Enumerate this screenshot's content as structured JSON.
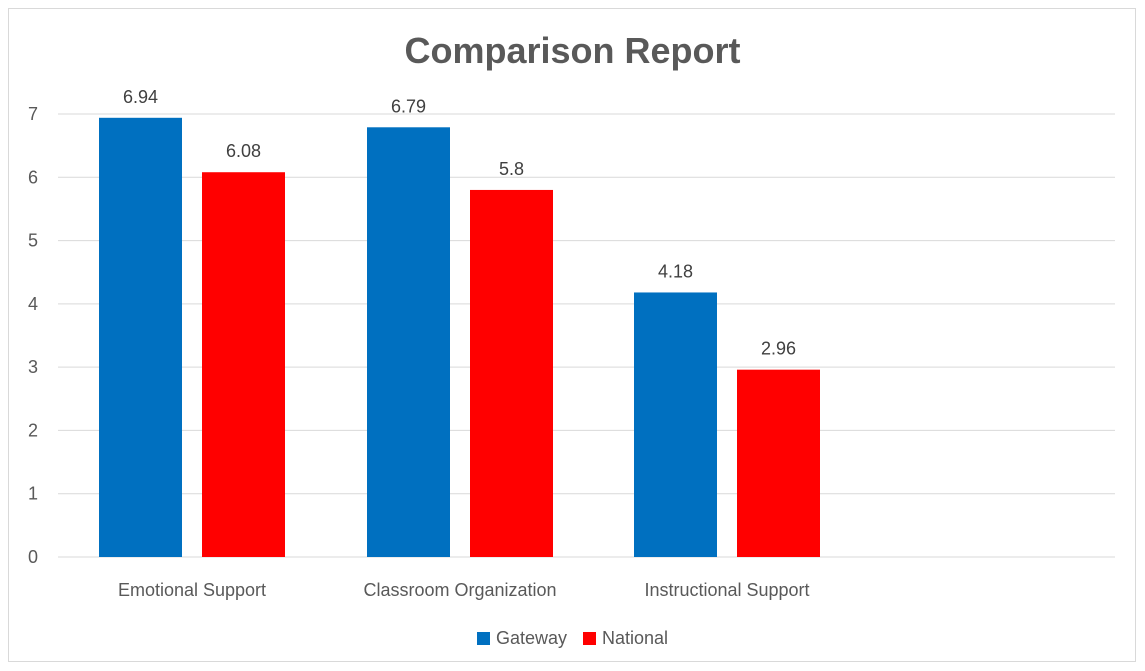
{
  "chart_data": {
    "type": "bar",
    "title": "Comparison Report",
    "categories": [
      "Emotional Support",
      "Classroom Organization",
      "Instructional Support"
    ],
    "series": [
      {
        "name": "Gateway",
        "color": "#0070C0",
        "values": [
          6.94,
          6.79,
          4.18
        ]
      },
      {
        "name": "National",
        "color": "#FF0000",
        "values": [
          6.08,
          5.8,
          2.96
        ]
      }
    ],
    "yticks": [
      "0",
      "1",
      "2",
      "3",
      "4",
      "5",
      "6",
      "7"
    ],
    "ylim": [
      0,
      7
    ],
    "grid": true,
    "legend_position": "bottom",
    "data_labels": true
  }
}
